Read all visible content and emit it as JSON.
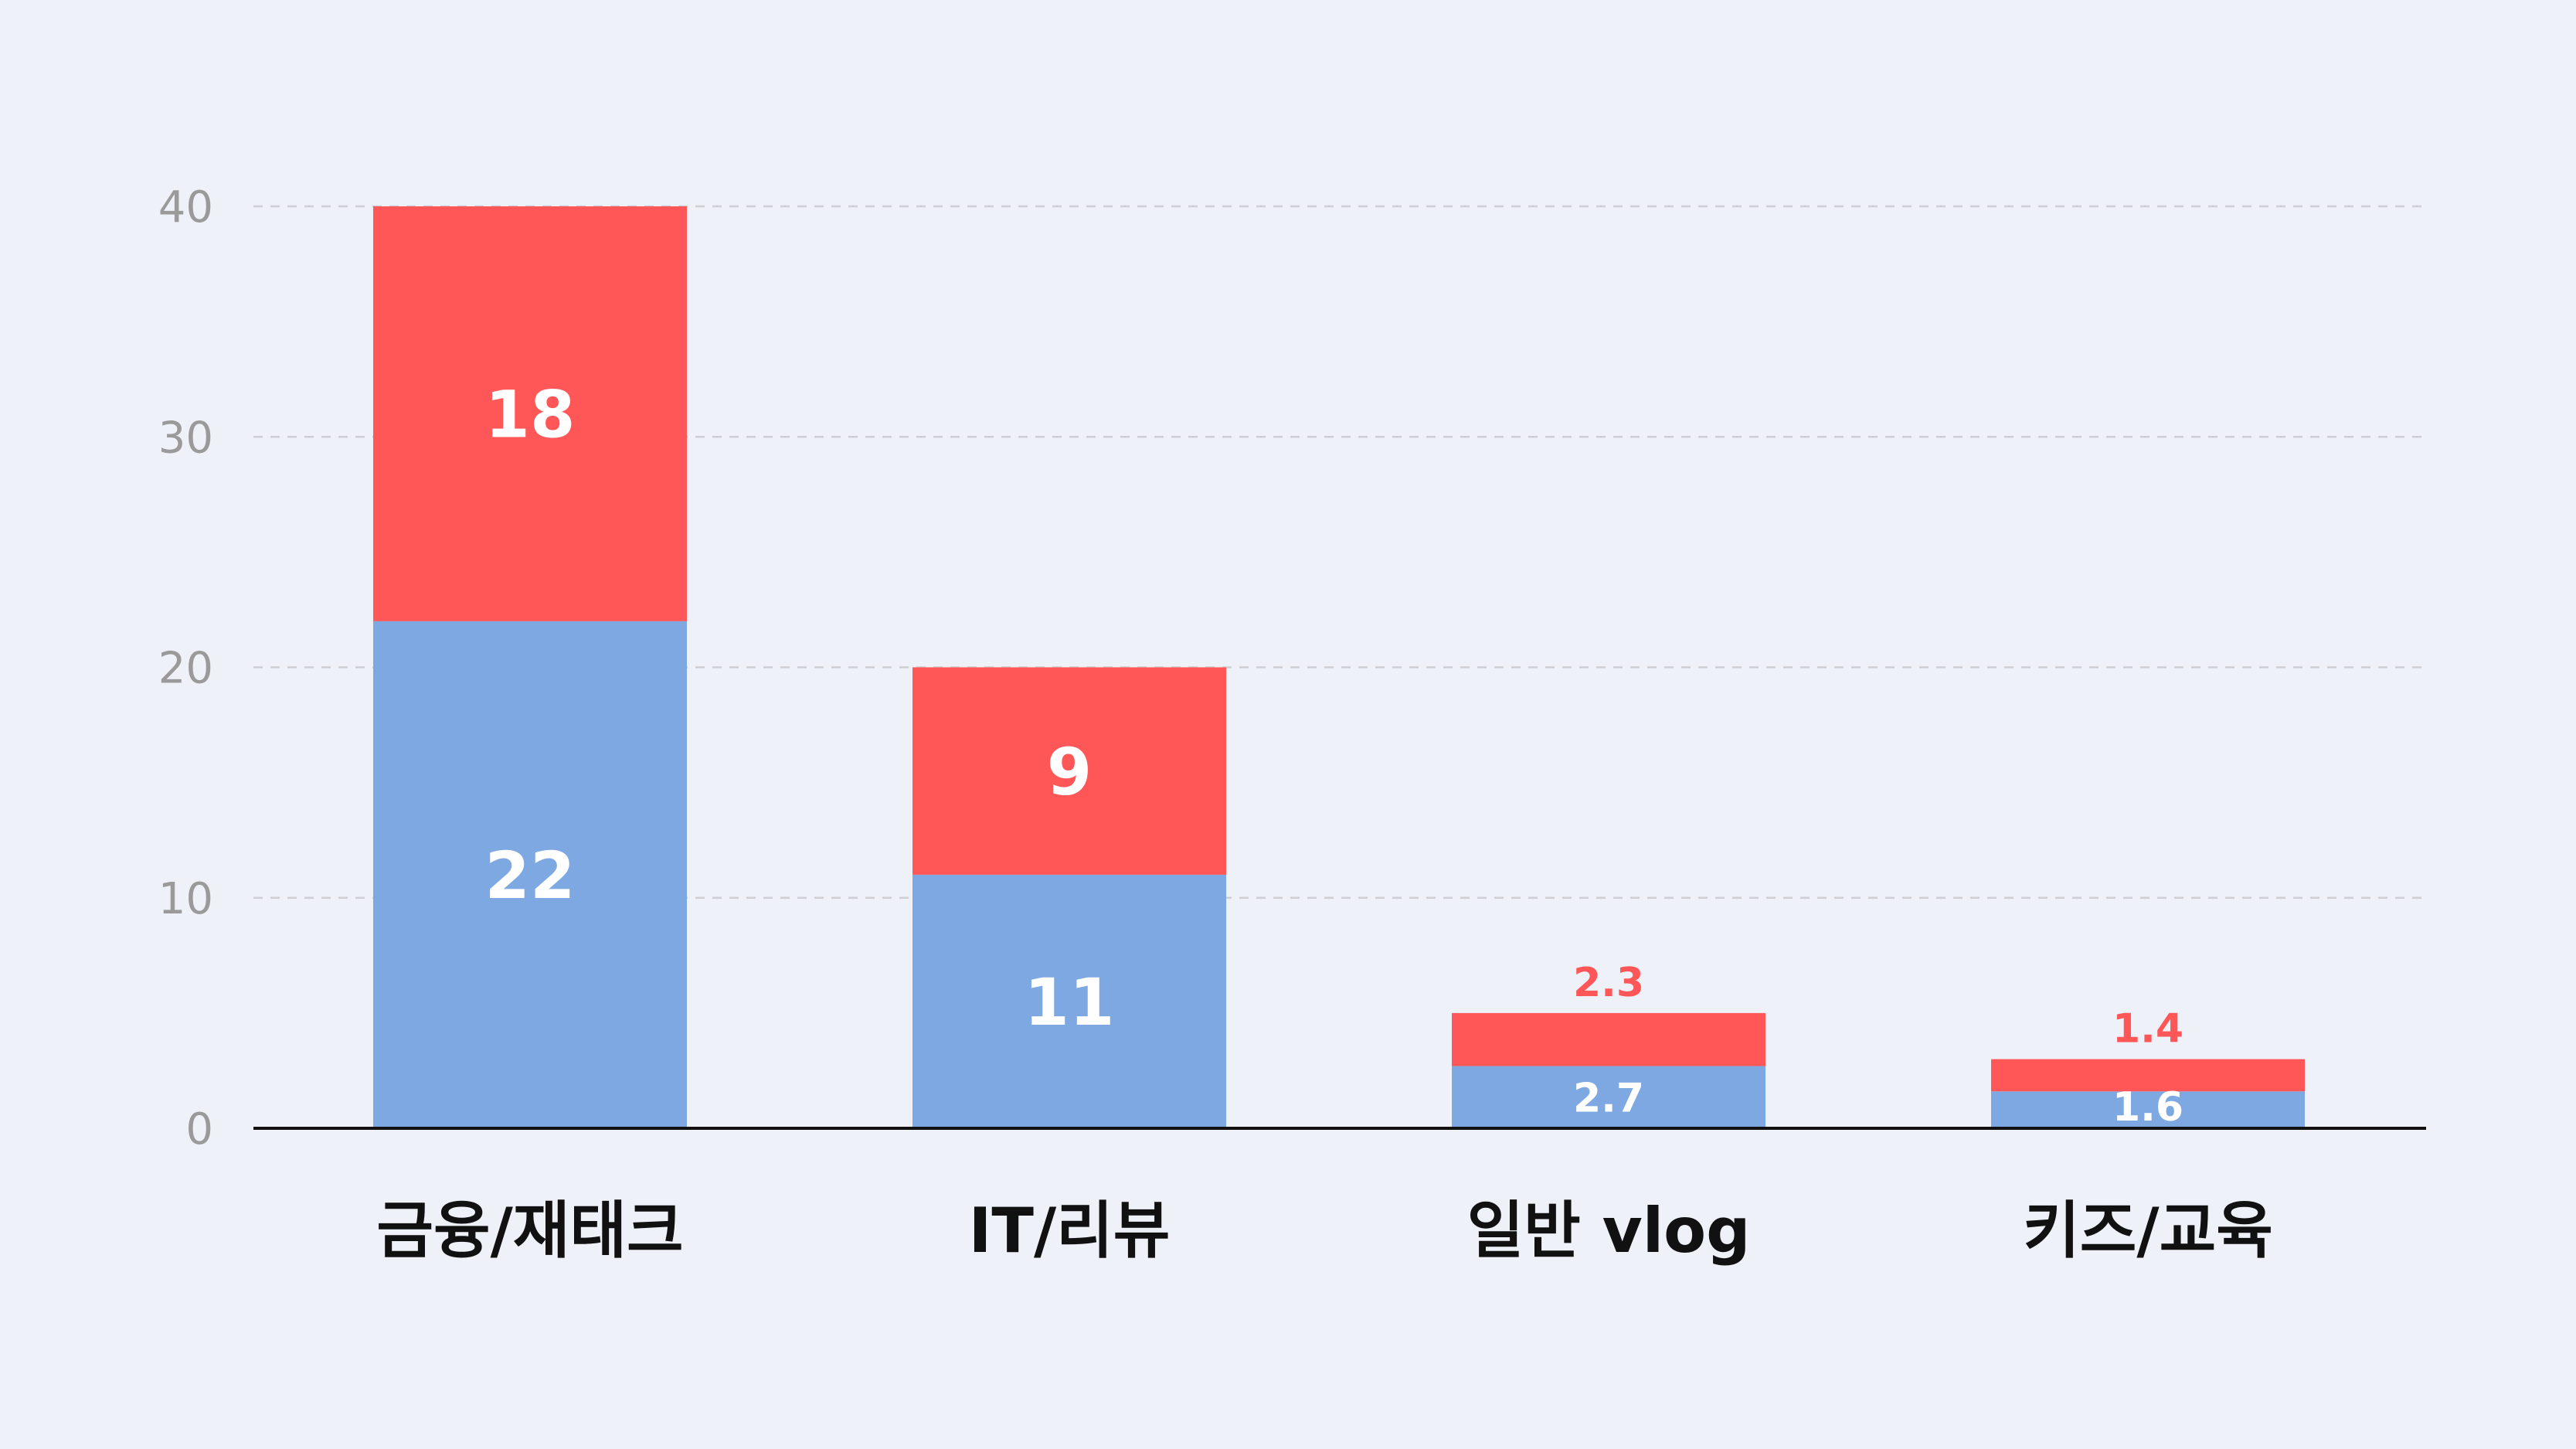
{
  "chart_data": {
    "type": "bar",
    "stacked": true,
    "categories": [
      "금융/재태크",
      "IT/리뷰",
      "일반 vlog",
      "키즈/교육"
    ],
    "series": [
      {
        "values": [
          22,
          11,
          2.7,
          1.6
        ],
        "labels": [
          "22",
          "11",
          "2.7",
          "1.6"
        ],
        "color": "#7ea8e2"
      },
      {
        "values": [
          18,
          9,
          2.3,
          1.4
        ],
        "labels": [
          "18",
          "9",
          "2.3",
          "1.4"
        ],
        "color": "#ff5757"
      }
    ],
    "yticks": [
      "0",
      "10",
      "20",
      "30",
      "40"
    ],
    "ylim": [
      0,
      40
    ],
    "grid": true,
    "legend": false,
    "title": "",
    "xlabel": "",
    "ylabel": ""
  }
}
